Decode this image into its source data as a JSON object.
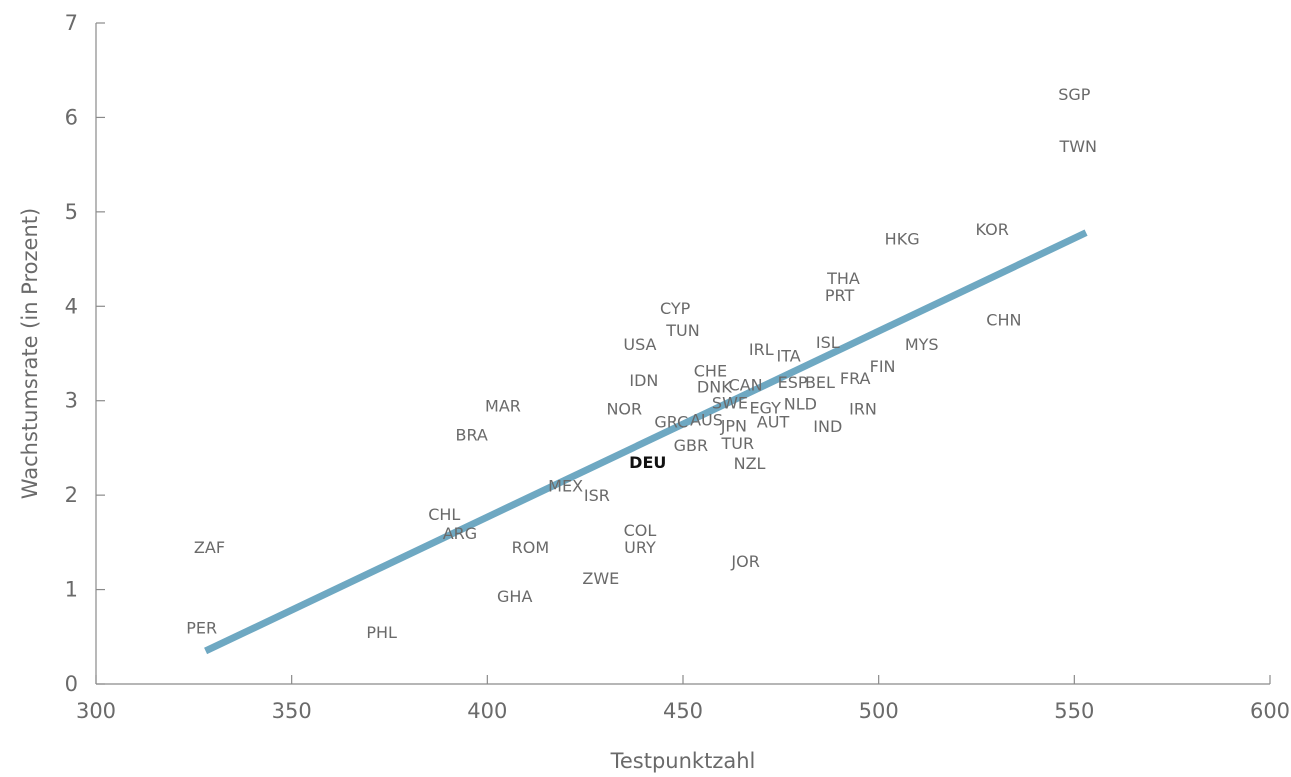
{
  "chart_data": {
    "type": "scatter",
    "xlabel": "Testpunktzahl",
    "ylabel": "Wachstumsrate (in Prozent)",
    "xlim": [
      300,
      600
    ],
    "ylim": [
      0,
      7
    ],
    "xticks": [
      300,
      350,
      400,
      450,
      500,
      550,
      600
    ],
    "yticks": [
      0,
      1,
      2,
      3,
      4,
      5,
      6,
      7
    ],
    "grid": false,
    "trendline": {
      "color": "#6ea8c2",
      "x": [
        328,
        553
      ],
      "y": [
        0.35,
        4.78
      ]
    },
    "highlight": "DEU",
    "points": [
      {
        "label": "SGP",
        "x": 550.0,
        "y": 6.25
      },
      {
        "label": "TWN",
        "x": 551.0,
        "y": 5.7
      },
      {
        "label": "KOR",
        "x": 529.0,
        "y": 4.82
      },
      {
        "label": "HKG",
        "x": 506.0,
        "y": 4.72
      },
      {
        "label": "THA",
        "x": 491.0,
        "y": 4.3
      },
      {
        "label": "PRT",
        "x": 490.0,
        "y": 4.12
      },
      {
        "label": "CHN",
        "x": 532.0,
        "y": 3.86
      },
      {
        "label": "MYS",
        "x": 511.0,
        "y": 3.6
      },
      {
        "label": "ISL",
        "x": 487.0,
        "y": 3.62
      },
      {
        "label": "IRL",
        "x": 470.0,
        "y": 3.55
      },
      {
        "label": "ITA",
        "x": 477.0,
        "y": 3.48
      },
      {
        "label": "FIN",
        "x": 501.0,
        "y": 3.37
      },
      {
        "label": "FRA",
        "x": 494.0,
        "y": 3.24
      },
      {
        "label": "ESP",
        "x": 478.0,
        "y": 3.2
      },
      {
        "label": "BEL",
        "x": 485.0,
        "y": 3.2
      },
      {
        "label": "CHE",
        "x": 457.0,
        "y": 3.32
      },
      {
        "label": "DNK",
        "x": 458.0,
        "y": 3.15
      },
      {
        "label": "CAN",
        "x": 466.0,
        "y": 3.17
      },
      {
        "label": "SWE",
        "x": 462.0,
        "y": 2.98
      },
      {
        "label": "EGY",
        "x": 471.0,
        "y": 2.93
      },
      {
        "label": "NLD",
        "x": 480.0,
        "y": 2.97
      },
      {
        "label": "IRN",
        "x": 496.0,
        "y": 2.92
      },
      {
        "label": "AUT",
        "x": 473.0,
        "y": 2.78
      },
      {
        "label": "IND",
        "x": 487.0,
        "y": 2.73
      },
      {
        "label": "AUS",
        "x": 456.0,
        "y": 2.8
      },
      {
        "label": "JPN",
        "x": 463.0,
        "y": 2.74
      },
      {
        "label": "GRC",
        "x": 447.0,
        "y": 2.78
      },
      {
        "label": "GBR",
        "x": 452.0,
        "y": 2.53
      },
      {
        "label": "TUR",
        "x": 464.0,
        "y": 2.55
      },
      {
        "label": "NZL",
        "x": 467.0,
        "y": 2.34
      },
      {
        "label": "CYP",
        "x": 448.0,
        "y": 3.98
      },
      {
        "label": "TUN",
        "x": 450.0,
        "y": 3.75
      },
      {
        "label": "USA",
        "x": 439.0,
        "y": 3.6
      },
      {
        "label": "IDN",
        "x": 440.0,
        "y": 3.22
      },
      {
        "label": "NOR",
        "x": 435.0,
        "y": 2.92
      },
      {
        "label": "DEU",
        "x": 441.0,
        "y": 2.35
      },
      {
        "label": "MEX",
        "x": 420.0,
        "y": 2.1
      },
      {
        "label": "ISR",
        "x": 428.0,
        "y": 2.0
      },
      {
        "label": "MAR",
        "x": 404.0,
        "y": 2.95
      },
      {
        "label": "BRA",
        "x": 396.0,
        "y": 2.64
      },
      {
        "label": "CHL",
        "x": 389.0,
        "y": 1.8
      },
      {
        "label": "ARG",
        "x": 393.0,
        "y": 1.6
      },
      {
        "label": "ROM",
        "x": 411.0,
        "y": 1.45
      },
      {
        "label": "COL",
        "x": 439.0,
        "y": 1.63
      },
      {
        "label": "URY",
        "x": 439.0,
        "y": 1.45
      },
      {
        "label": "JOR",
        "x": 466.0,
        "y": 1.3
      },
      {
        "label": "ZWE",
        "x": 429.0,
        "y": 1.12
      },
      {
        "label": "GHA",
        "x": 407.0,
        "y": 0.93
      },
      {
        "label": "ZAF",
        "x": 329.0,
        "y": 1.45
      },
      {
        "label": "PER",
        "x": 327.0,
        "y": 0.6
      },
      {
        "label": "PHL",
        "x": 373.0,
        "y": 0.55
      }
    ]
  }
}
